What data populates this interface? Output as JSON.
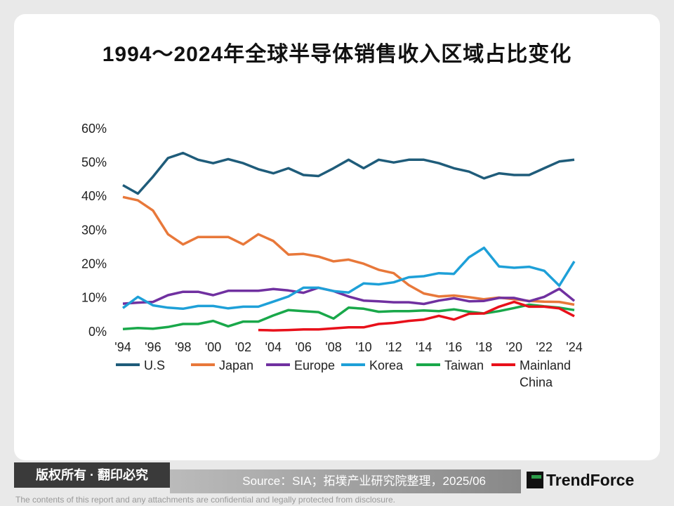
{
  "chart_data": {
    "type": "line",
    "title": "1994～2024年全球半导体销售收入区域占比变化",
    "categories": [
      "'94",
      null,
      "'96",
      null,
      "'98",
      null,
      "'00",
      null,
      "'02",
      null,
      "'04",
      null,
      "'06",
      null,
      "'08",
      null,
      "'10",
      null,
      "'12",
      null,
      "'14",
      null,
      "'16",
      null,
      "'18",
      null,
      "'20",
      null,
      "'22",
      null,
      "'24"
    ],
    "ylim": [
      0,
      60
    ],
    "yticks": [
      {
        "value": 0,
        "label": "0%"
      },
      {
        "value": 10,
        "label": "10%"
      },
      {
        "value": 20,
        "label": "20%"
      },
      {
        "value": 30,
        "label": "30%"
      },
      {
        "value": 40,
        "label": "40%"
      },
      {
        "value": 50,
        "label": "50%"
      },
      {
        "value": 60,
        "label": "60%"
      }
    ],
    "grid": false,
    "legend": "bottom",
    "series": [
      {
        "name": "U.S",
        "color": "#1f5c7a",
        "values": [
          43.5,
          41,
          46,
          51.5,
          53,
          51,
          50,
          51.2,
          50,
          48.2,
          47,
          48.5,
          46.5,
          46.2,
          48.5,
          51,
          48.5,
          51,
          50.2,
          51,
          51,
          50,
          48.5,
          47.5,
          45.5,
          47,
          46.5,
          46.5,
          48.5,
          50.5,
          51
        ]
      },
      {
        "name": "Japan",
        "color": "#e8783a",
        "values": [
          40,
          39,
          36,
          29,
          26,
          28.2,
          28.2,
          28.2,
          26,
          29,
          27,
          23,
          23.2,
          22.4,
          21,
          21.5,
          20.3,
          18.5,
          17.5,
          14,
          11.5,
          10.6,
          10.9,
          10.4,
          9.8,
          10.3,
          9.8,
          9.3,
          9.1,
          9,
          8.2
        ]
      },
      {
        "name": "Europe",
        "color": "#7030a0",
        "values": [
          8.5,
          8.8,
          9,
          11,
          12,
          12,
          11,
          12.3,
          12.3,
          12.3,
          12.8,
          12.4,
          11.7,
          13.2,
          12.2,
          10.6,
          9.4,
          9.2,
          8.9,
          8.9,
          8.4,
          9.4,
          10.1,
          9.2,
          9.3,
          10.2,
          10.2,
          9.2,
          10.5,
          12.9,
          9.3
        ]
      },
      {
        "name": "Korea",
        "color": "#1ea0d8",
        "values": [
          7.2,
          10.5,
          8,
          7.3,
          7,
          7.8,
          7.8,
          7.1,
          7.6,
          7.6,
          9.1,
          10.6,
          13.2,
          13.2,
          12.2,
          11.8,
          14.5,
          14.2,
          14.8,
          16.3,
          16.6,
          17.5,
          17.3,
          22.2,
          25,
          19.5,
          19.1,
          19.4,
          18.2,
          13.8,
          21
        ]
      },
      {
        "name": "Taiwan",
        "color": "#19a84a",
        "values": [
          1,
          1.3,
          1.1,
          1.6,
          2.5,
          2.5,
          3.4,
          1.8,
          3.2,
          3.2,
          5,
          6.6,
          6.3,
          6,
          4.1,
          7.3,
          7,
          6.1,
          6.3,
          6.3,
          6.5,
          6.3,
          6.8,
          6.1,
          5.6,
          6.3,
          7.2,
          8.2,
          7.7,
          7.3,
          6.6
        ]
      },
      {
        "name": "Mainland China",
        "color": "#e8101a",
        "values": [
          null,
          null,
          null,
          null,
          null,
          null,
          null,
          null,
          null,
          0.7,
          0.6,
          0.7,
          0.9,
          0.9,
          1.2,
          1.5,
          1.5,
          2.5,
          2.8,
          3.4,
          3.8,
          4.9,
          3.8,
          5.5,
          5.6,
          7.6,
          9,
          7.6,
          7.6,
          7.1,
          4.8
        ]
      }
    ]
  },
  "footer": {
    "rights": "版权所有 · 翻印必究",
    "source": "Source：SIA；拓墣产业研究院整理，2025/06",
    "brand": "TrendForce",
    "disclaimer": "The contents of this report and any attachments are confidential and legally protected from disclosure."
  }
}
